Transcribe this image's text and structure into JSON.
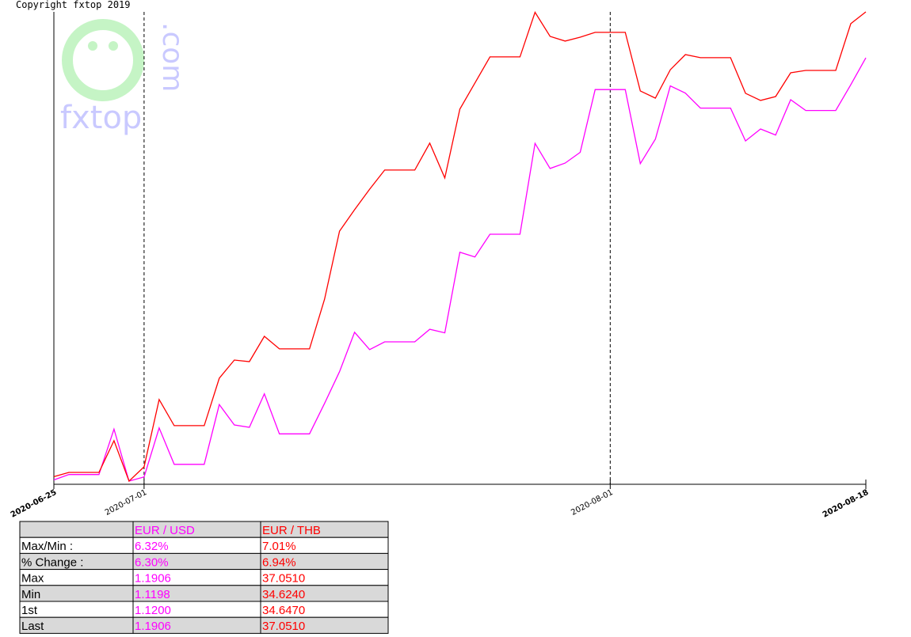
{
  "copyright": "Copyright fxtop 2019",
  "watermark": {
    "name": "fxtop",
    "suffix": ".com"
  },
  "chart_data": {
    "type": "line",
    "categories": [
      "2020-06-25",
      null,
      null,
      null,
      null,
      null,
      "2020-07-01",
      null,
      null,
      null,
      null,
      null,
      null,
      null,
      null,
      null,
      null,
      null,
      null,
      null,
      null,
      null,
      null,
      null,
      null,
      null,
      null,
      null,
      null,
      null,
      null,
      null,
      null,
      null,
      null,
      null,
      null,
      "2020-08-01",
      null,
      null,
      null,
      null,
      null,
      null,
      null,
      null,
      null,
      null,
      null,
      null,
      null,
      null,
      null,
      null,
      "2020-08-18"
    ],
    "series": [
      {
        "name": "EUR / USD",
        "color": "#ff00ff",
        "values": [
          1.12,
          1.1209,
          1.1209,
          1.1209,
          1.1285,
          1.1198,
          1.1205,
          1.1287,
          1.1226,
          1.1226,
          1.1226,
          1.1326,
          1.1292,
          1.1288,
          1.1344,
          1.1277,
          1.1277,
          1.1277,
          1.1328,
          1.1381,
          1.1447,
          1.1418,
          1.1431,
          1.1431,
          1.1431,
          1.1452,
          1.1446,
          1.1581,
          1.1573,
          1.1611,
          1.1611,
          1.1611,
          1.1763,
          1.1721,
          1.173,
          1.1748,
          1.1853,
          1.1853,
          1.1853,
          1.1729,
          1.177,
          1.1859,
          1.1847,
          1.1822,
          1.1822,
          1.1822,
          1.1767,
          1.1787,
          1.1777,
          1.1836,
          1.1818,
          1.1818,
          1.1818,
          1.1861,
          1.1906
        ]
      },
      {
        "name": "EUR / THB",
        "color": "#ff0000",
        "values": [
          34.647,
          34.669,
          34.669,
          34.669,
          34.833,
          34.624,
          34.698,
          35.046,
          34.911,
          34.911,
          34.911,
          35.156,
          35.25,
          35.242,
          35.373,
          35.308,
          35.308,
          35.308,
          35.565,
          35.917,
          36.028,
          36.134,
          36.233,
          36.233,
          36.233,
          36.372,
          36.192,
          36.548,
          36.683,
          36.818,
          36.818,
          36.818,
          37.049,
          36.924,
          36.9,
          36.92,
          36.945,
          36.945,
          36.945,
          36.642,
          36.605,
          36.752,
          36.83,
          36.814,
          36.814,
          36.814,
          36.63,
          36.593,
          36.613,
          36.736,
          36.748,
          36.748,
          36.748,
          36.99,
          37.051
        ]
      }
    ]
  },
  "table": {
    "rows": [
      {
        "label": "Max/Min :",
        "values": [
          "6.32%",
          "7.01%"
        ]
      },
      {
        "label": "% Change :",
        "values": [
          "6.30%",
          "6.94%"
        ]
      },
      {
        "label": "Max",
        "values": [
          "1.1906",
          "37.0510"
        ]
      },
      {
        "label": "Min",
        "values": [
          "1.1198",
          "34.6240"
        ]
      },
      {
        "label": "1st",
        "values": [
          "1.1200",
          "34.6470"
        ]
      },
      {
        "label": "Last",
        "values": [
          "1.1906",
          "37.0510"
        ]
      }
    ]
  }
}
